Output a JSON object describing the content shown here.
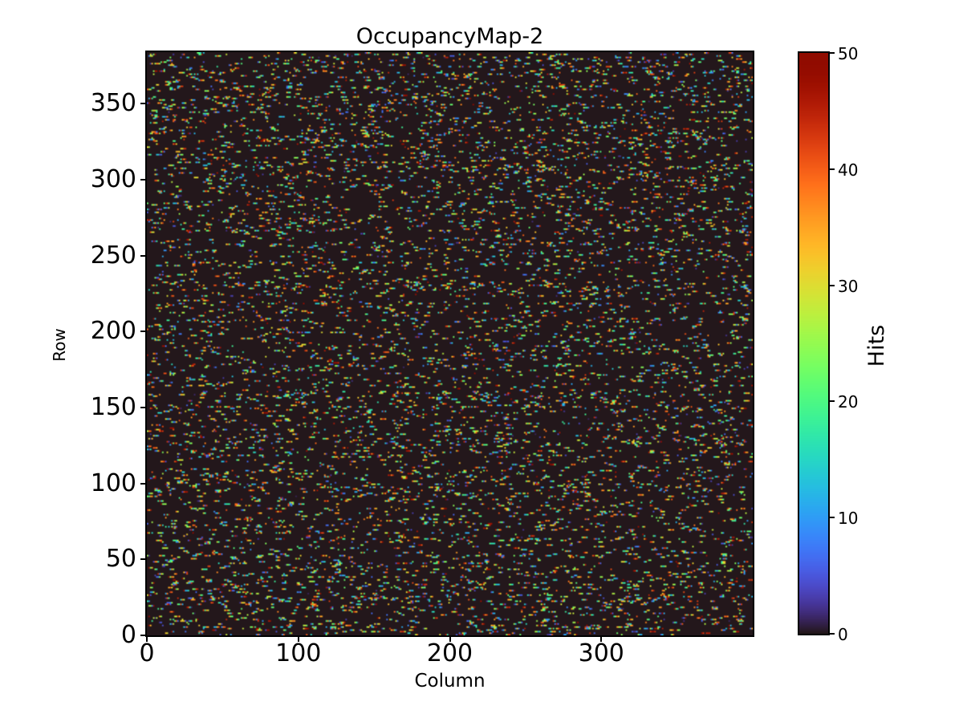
{
  "chart_data": {
    "type": "heatmap",
    "title": "OccupancyMap-2",
    "xlabel": "Column",
    "ylabel": "Row",
    "colorbar_label": "Hits",
    "colormap": "turbo",
    "vmin": 0,
    "vmax": 50,
    "grid": {
      "cols": 400,
      "rows": 384
    },
    "xlim": [
      0,
      400
    ],
    "ylim": [
      0,
      384
    ],
    "x_ticks": [
      0,
      100,
      200,
      300
    ],
    "y_ticks": [
      0,
      50,
      100,
      150,
      200,
      250,
      300,
      350
    ],
    "colorbar_ticks": [
      0,
      10,
      20,
      30,
      40,
      50
    ],
    "background_value_color": "#30123b",
    "legend_position": "right-colorbar",
    "grid_lines": false,
    "pattern": {
      "description": "sparse random hit clusters in horizontal runs over a zero-count background",
      "seed": 1337,
      "cluster_start_probability": 0.05,
      "cluster_length_min": 1,
      "cluster_length_max": 4,
      "hit_value_min": 1,
      "hit_value_max": 50,
      "approx_occupancy": 0.12
    }
  }
}
